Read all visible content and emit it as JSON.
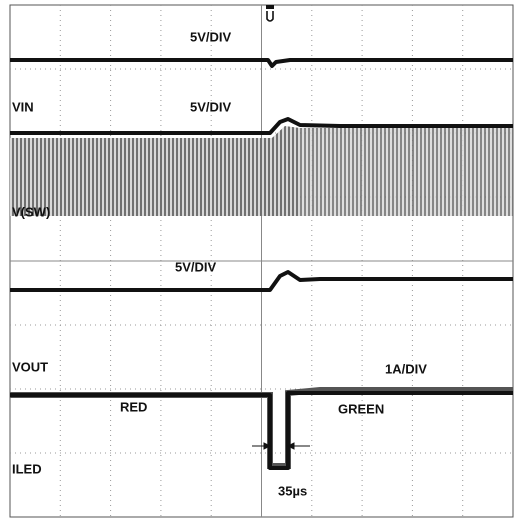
{
  "labels": [
    "5V/DIV",
    "VIN",
    "5V/DIV",
    "V(SW)",
    "5V/DIV",
    "VOUT",
    "1A/DIV",
    "RED",
    "GREEN",
    "ILED",
    "35µs"
  ]
}
